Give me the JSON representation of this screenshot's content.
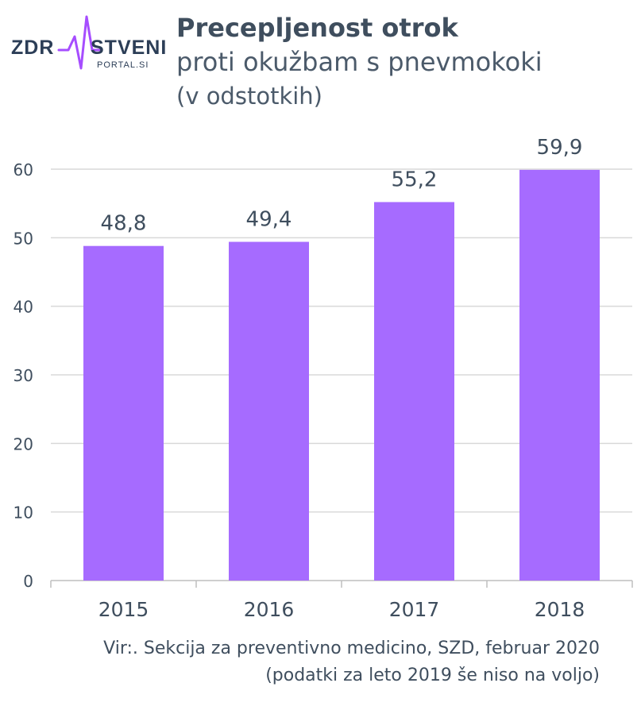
{
  "logo": {
    "text_left": "ZDR",
    "text_right": "STVENI",
    "subtext": "PORTAL.SI",
    "pulse_color": "#a64dff"
  },
  "title": {
    "main": "Precepljenost otrok",
    "sub": "proti okužbam s pnevmokoki",
    "unit": "(v odstotkih)"
  },
  "source": {
    "line1": "Vir:. Sekcija za preventivno medicino, SZD, februar 2020",
    "line2": "(podatki za leto 2019 še niso na voljo)"
  },
  "chart_data": {
    "type": "bar",
    "categories": [
      "2015",
      "2016",
      "2017",
      "2018"
    ],
    "values": [
      48.8,
      49.4,
      55.2,
      59.9
    ],
    "value_labels": [
      "48,8",
      "49,4",
      "55,2",
      "59,9"
    ],
    "ylim": [
      0,
      60
    ],
    "yticks": [
      0,
      10,
      20,
      30,
      40,
      50,
      60
    ],
    "grid": true,
    "bar_color": "#a66bff",
    "grid_color": "#d9d9d9",
    "axis_color": "#bfbfbf",
    "xlabel": "",
    "ylabel": ""
  }
}
